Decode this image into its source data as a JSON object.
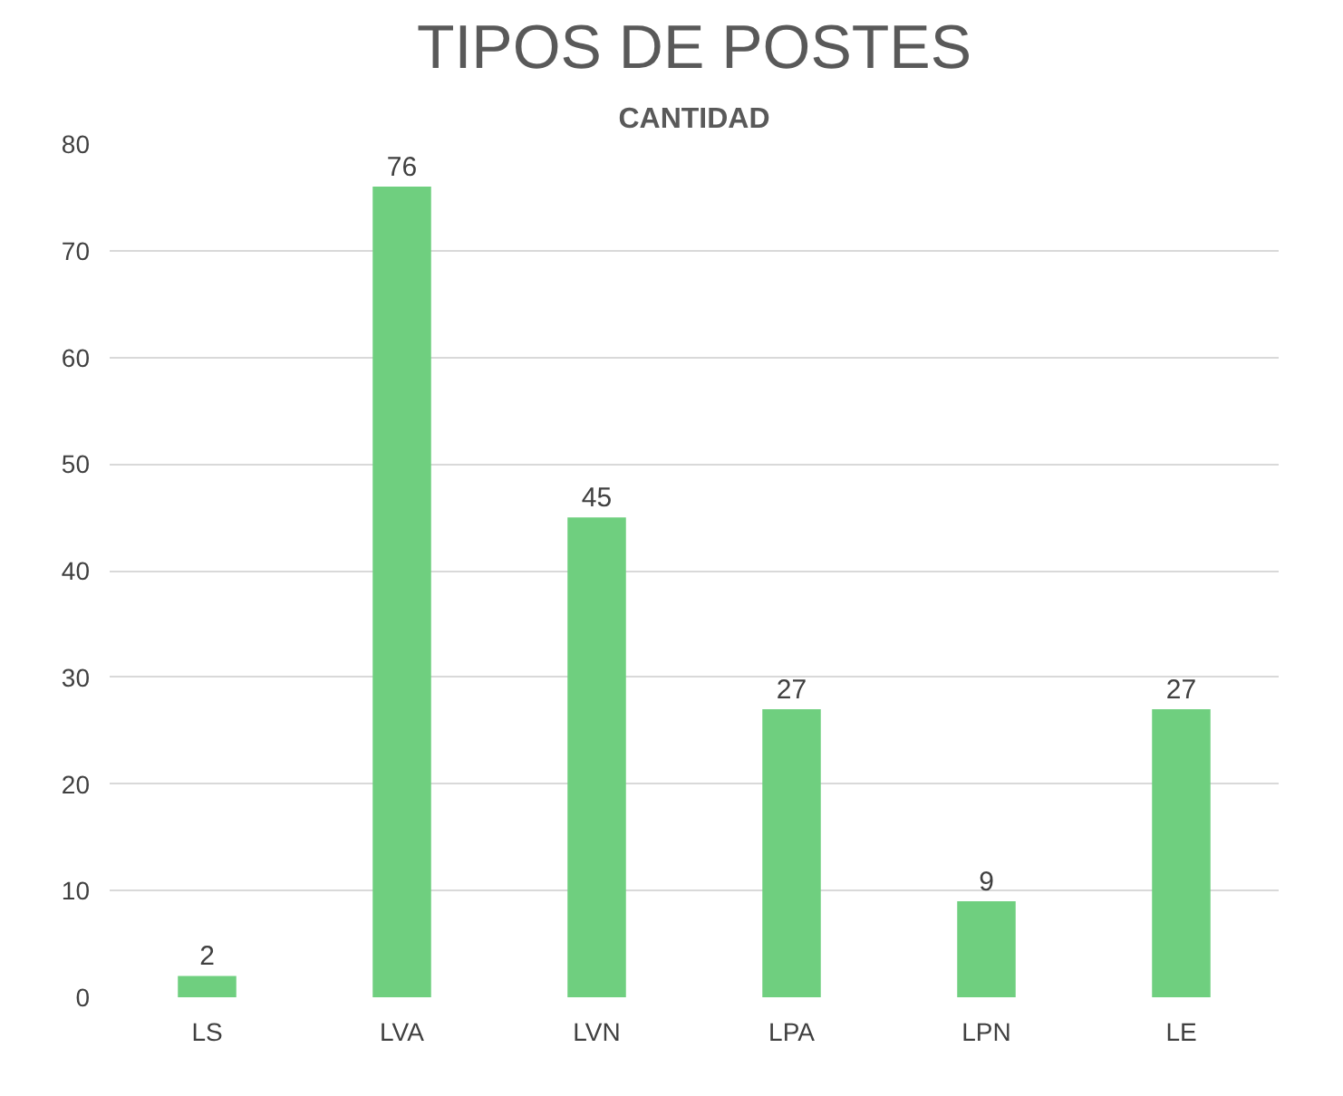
{
  "chart_data": {
    "type": "bar",
    "title": "TIPOS DE POSTES",
    "subtitle": "CANTIDAD",
    "categories": [
      "LS",
      "LVA",
      "LVN",
      "LPA",
      "LPN",
      "LE"
    ],
    "values": [
      2,
      76,
      45,
      27,
      9,
      27
    ],
    "color": "#6fcf7f",
    "ylim": [
      0,
      80
    ],
    "yticks": [
      0,
      10,
      20,
      30,
      40,
      50,
      60,
      70,
      80
    ],
    "grid": "y",
    "data_labels": true
  }
}
